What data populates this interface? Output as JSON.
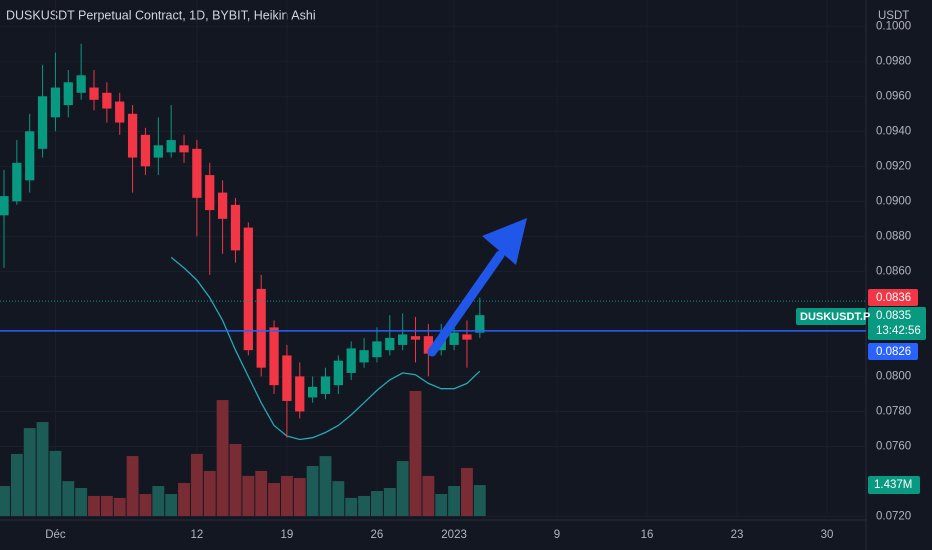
{
  "chart_data": {
    "type": "candlestick",
    "title": "DUSKUSDT Perpetual Contract, 1D, BYBIT, Heikin Ashi",
    "currency": "USDT",
    "up_color": "#089981",
    "down_color": "#f23645",
    "volume_up_color": "#1d5b57",
    "volume_down_color": "#7a2c35",
    "ma_color": "#26a7b5",
    "open": [
      0.0892,
      0.09,
      0.0912,
      0.093,
      0.0948,
      0.0955,
      0.0962,
      0.0965,
      0.0962,
      0.0957,
      0.095,
      0.0938,
      0.0925,
      0.0928,
      0.0932,
      0.093,
      0.0915,
      0.0905,
      0.0898,
      0.0885,
      0.085,
      0.0828,
      0.0812,
      0.08,
      0.0788,
      0.079,
      0.0795,
      0.0802,
      0.0808,
      0.0811,
      0.0815,
      0.0818,
      0.0823,
      0.0823,
      0.0815,
      0.0818,
      0.0824,
      0.0825
    ],
    "high": [
      0.0918,
      0.0935,
      0.095,
      0.0978,
      0.0985,
      0.0975,
      0.099,
      0.0975,
      0.0968,
      0.0962,
      0.0955,
      0.0942,
      0.0948,
      0.0955,
      0.0938,
      0.0935,
      0.0922,
      0.0912,
      0.0902,
      0.0888,
      0.0858,
      0.0832,
      0.0818,
      0.0808,
      0.08,
      0.0805,
      0.0812,
      0.082,
      0.0822,
      0.0828,
      0.0835,
      0.0836,
      0.0834,
      0.083,
      0.083,
      0.0834,
      0.0832,
      0.0845
    ],
    "low": [
      0.0862,
      0.0898,
      0.0905,
      0.0925,
      0.094,
      0.0948,
      0.0958,
      0.0952,
      0.0945,
      0.0938,
      0.0905,
      0.0915,
      0.0915,
      0.0925,
      0.0922,
      0.088,
      0.0858,
      0.087,
      0.0865,
      0.0812,
      0.08,
      0.079,
      0.0765,
      0.0776,
      0.0785,
      0.0787,
      0.079,
      0.0798,
      0.0805,
      0.0808,
      0.0812,
      0.0815,
      0.0808,
      0.08,
      0.0812,
      0.0815,
      0.0805,
      0.0822
    ],
    "close": [
      0.0903,
      0.0922,
      0.094,
      0.096,
      0.0965,
      0.0968,
      0.0972,
      0.0958,
      0.0953,
      0.0945,
      0.0925,
      0.092,
      0.0932,
      0.0935,
      0.0928,
      0.0902,
      0.0895,
      0.089,
      0.0872,
      0.0815,
      0.0805,
      0.0795,
      0.0786,
      0.078,
      0.0794,
      0.08,
      0.0809,
      0.0816,
      0.0815,
      0.082,
      0.0822,
      0.0824,
      0.0821,
      0.0813,
      0.0822,
      0.0825,
      0.0821,
      0.0835
    ],
    "volume": {
      "values": [
        1.39,
        2.88,
        4.08,
        4.36,
        3.02,
        1.62,
        1.3,
        0.93,
        0.93,
        0.84,
        2.78,
        1.02,
        1.39,
        1.02,
        1.53,
        2.88,
        2.09,
        5.38,
        3.34,
        1.86,
        2.09,
        1.53,
        1.86,
        1.76,
        2.32,
        2.78,
        1.62,
        0.84,
        0.93,
        1.16,
        1.3,
        2.55,
        5.8,
        1.86,
        1.02,
        1.39,
        2.23,
        1.437
      ],
      "value_labels": [
        null,
        null,
        null,
        null,
        null,
        null,
        null,
        null,
        null,
        null,
        null,
        null,
        null,
        null,
        null,
        null,
        null,
        null,
        null,
        null,
        null,
        null,
        null,
        null,
        null,
        null,
        null,
        null,
        null,
        null,
        null,
        null,
        null,
        null,
        null,
        null,
        null,
        "1.437M"
      ]
    },
    "ma": {
      "values": [
        null,
        null,
        null,
        null,
        null,
        null,
        null,
        null,
        null,
        null,
        null,
        null,
        null,
        0.0868,
        0.0862,
        0.0855,
        0.0845,
        0.0832,
        0.0815,
        0.08,
        0.0785,
        0.0772,
        0.0766,
        0.0764,
        0.0765,
        0.0768,
        0.0772,
        0.0778,
        0.0785,
        0.0792,
        0.0798,
        0.0802,
        0.0801,
        0.0796,
        0.0793,
        0.0793,
        0.0796,
        0.0803
      ]
    },
    "xlim": [
      -0.31,
      67.03
    ],
    "xticks": [
      {
        "value": 4,
        "label": "Déc"
      },
      {
        "value": 15,
        "label": "12"
      },
      {
        "value": 22,
        "label": "19"
      },
      {
        "value": 29,
        "label": "26"
      },
      {
        "value": 35,
        "label": "2023"
      },
      {
        "value": 43,
        "label": "9"
      },
      {
        "value": 50,
        "label": "16"
      },
      {
        "value": 57,
        "label": "23"
      },
      {
        "value": 64,
        "label": "30"
      }
    ],
    "ylim": [
      0.0718,
      0.1015
    ],
    "yticks": [
      {
        "value": 0.072,
        "label": "0.0720"
      },
      {
        "value": 0.076,
        "label": "0.0760"
      },
      {
        "value": 0.078,
        "label": "0.0780"
      },
      {
        "value": 0.08,
        "label": "0.0800"
      },
      {
        "value": 0.086,
        "label": "0.0860"
      },
      {
        "value": 0.088,
        "label": "0.0880"
      },
      {
        "value": 0.09,
        "label": "0.0900"
      },
      {
        "value": 0.092,
        "label": "0.0920"
      },
      {
        "value": 0.094,
        "label": "0.0940"
      },
      {
        "value": 0.096,
        "label": "0.0960"
      },
      {
        "value": 0.098,
        "label": "0.0980"
      },
      {
        "value": 0.1,
        "label": "0.1000"
      }
    ],
    "grid": true,
    "price_levels": [
      {
        "value": 0.0836,
        "label": "0.0836",
        "color": "#f23645"
      },
      {
        "value": 0.0835,
        "label": "0.0835",
        "color": "#089981"
      },
      {
        "value": 0.0826,
        "label": "0.0826",
        "color": "#2962ff"
      }
    ],
    "symbol_tag": "DUSKUSDT.P",
    "countdown": "13:42:56"
  }
}
